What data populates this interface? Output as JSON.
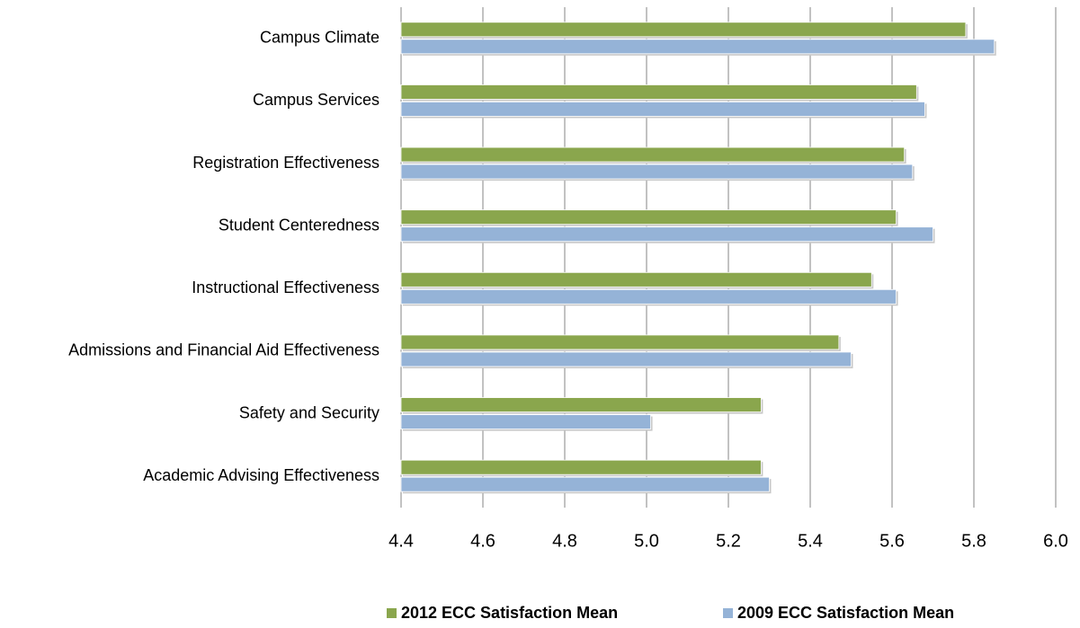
{
  "chart_data": {
    "type": "hbar",
    "categories": [
      "Campus Climate",
      "Campus Services",
      "Registration Effectiveness",
      "Student Centeredness",
      "Instructional Effectiveness",
      "Admissions and Financial Aid Effectiveness",
      "Safety and Security",
      "Academic Advising Effectiveness"
    ],
    "series": [
      {
        "name": "2012 ECC Satisfaction Mean",
        "color": "#8aa64d",
        "values": [
          5.78,
          5.66,
          5.63,
          5.61,
          5.55,
          5.47,
          5.28,
          5.28
        ]
      },
      {
        "name": "2009 ECC Satisfaction Mean",
        "color": "#95b3d7",
        "values": [
          5.85,
          5.68,
          5.65,
          5.7,
          5.61,
          5.5,
          5.01,
          5.3
        ]
      }
    ],
    "xlim": [
      4.4,
      6.0
    ],
    "xticks": [
      4.4,
      4.6,
      4.8,
      {
        "value": 5.0,
        "label": "5.0"
      },
      5.2,
      5.4,
      5.6,
      5.8,
      {
        "value": 6.0,
        "label": "6.0"
      }
    ],
    "grid": true,
    "legend": "bottom"
  }
}
